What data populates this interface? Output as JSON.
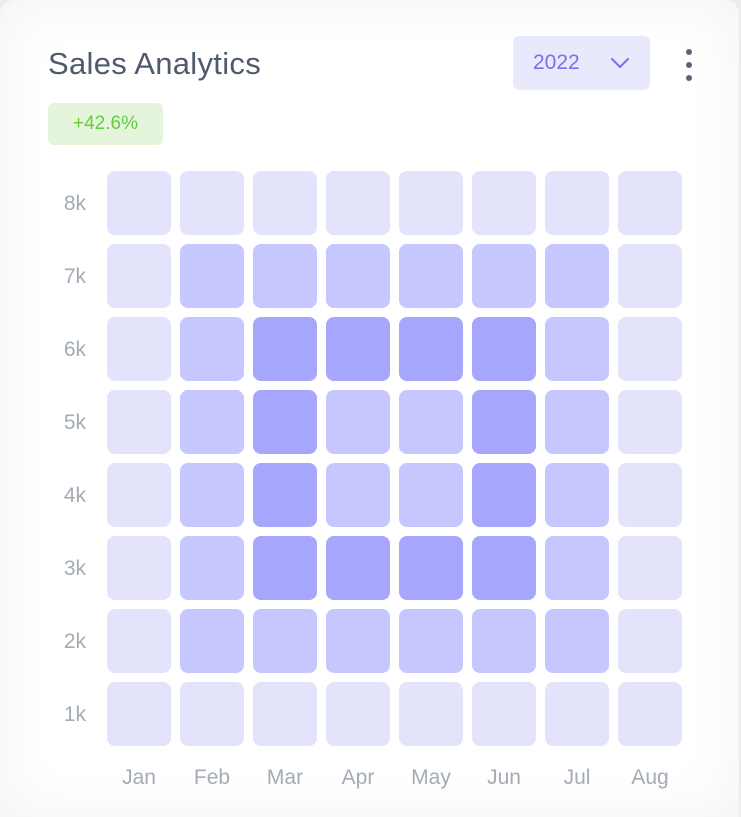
{
  "card": {
    "title": "Sales Analytics",
    "year_select": {
      "value": "2022",
      "icon": "chevron-down-icon"
    },
    "more_icon": "more-vertical-icon",
    "growth_badge": "+42.6%"
  },
  "colors": {
    "badge_text": "#62cc3d",
    "badge_bg": "#e4f5db",
    "accent": "#7a6ff0",
    "scale": [
      "#e3e3fc",
      "#c7c7ff",
      "#a6a6fc"
    ]
  },
  "chart_data": {
    "type": "heatmap",
    "title": "Sales Analytics",
    "x": [
      "Jan",
      "Feb",
      "Mar",
      "Apr",
      "May",
      "Jun",
      "Jul",
      "Aug"
    ],
    "y": [
      "1k",
      "2k",
      "3k",
      "4k",
      "5k",
      "6k",
      "7k",
      "8k"
    ],
    "levels": 3,
    "z": [
      [
        1,
        1,
        1,
        1,
        1,
        1,
        1,
        1
      ],
      [
        1,
        2,
        2,
        2,
        2,
        2,
        2,
        1
      ],
      [
        1,
        2,
        3,
        3,
        3,
        3,
        2,
        1
      ],
      [
        1,
        2,
        3,
        2,
        2,
        3,
        2,
        1
      ],
      [
        1,
        2,
        3,
        2,
        2,
        3,
        2,
        1
      ],
      [
        1,
        2,
        3,
        3,
        3,
        3,
        2,
        1
      ],
      [
        1,
        2,
        2,
        2,
        2,
        2,
        2,
        1
      ],
      [
        1,
        1,
        1,
        1,
        1,
        1,
        1,
        1
      ]
    ],
    "legend": false,
    "grid": false
  }
}
